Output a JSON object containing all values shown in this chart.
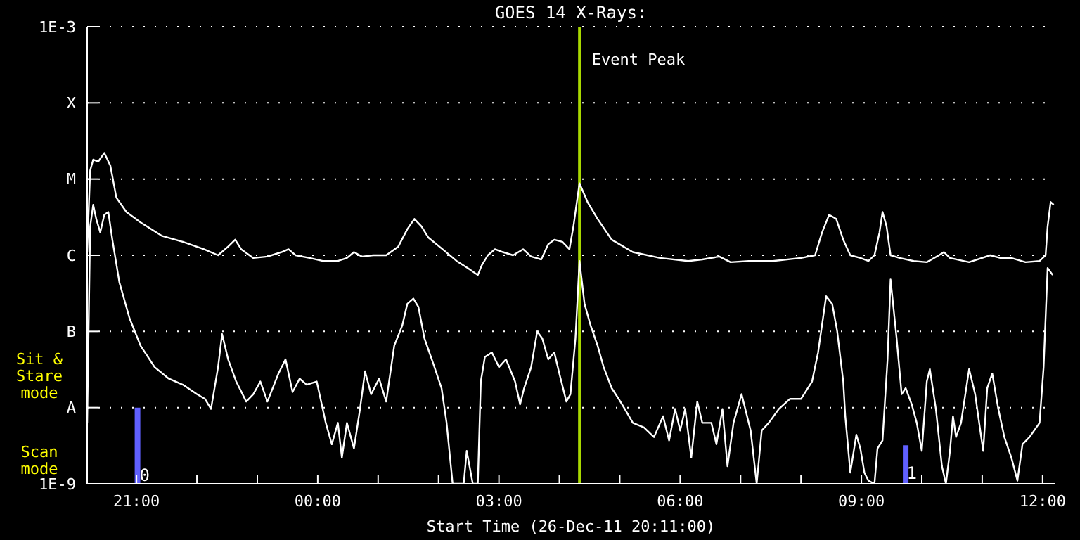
{
  "chart_data": {
    "type": "line",
    "title": "GOES 14 X-Rays:",
    "xlabel": "Start Time (26-Dec-11 20:11:00)",
    "xlim": [
      "--12-26T20:11",
      "--12-27T12:12"
    ],
    "xticks": [
      {
        "value": "--12-26T21:00",
        "label": "21:00"
      },
      {
        "value": "--12-26T22:00",
        "label": null
      },
      {
        "value": "--12-26T23:00",
        "label": null
      },
      {
        "value": "--12-27T00:00",
        "label": "00:00"
      },
      {
        "value": "--12-27T01:00",
        "label": null
      },
      {
        "value": "--12-27T02:00",
        "label": null
      },
      {
        "value": "--12-27T03:00",
        "label": "03:00"
      },
      {
        "value": "--12-27T04:00",
        "label": null
      },
      {
        "value": "--12-27T05:00",
        "label": null
      },
      {
        "value": "--12-27T06:00",
        "label": "06:00"
      },
      {
        "value": "--12-27T07:00",
        "label": null
      },
      {
        "value": "--12-27T08:00",
        "label": null
      },
      {
        "value": "--12-27T09:00",
        "label": "09:00"
      },
      {
        "value": "--12-27T10:00",
        "label": null
      },
      {
        "value": "--12-27T11:00",
        "label": null
      },
      {
        "value": "--12-27T12:00",
        "label": "12:00"
      }
    ],
    "ylim": [
      1e-09,
      0.001
    ],
    "yticks": [
      {
        "value": 1e-09,
        "label": "1E-9"
      },
      {
        "value": 1e-08,
        "label": "A"
      },
      {
        "value": 1e-07,
        "label": "B"
      },
      {
        "value": 1e-06,
        "label": "C"
      },
      {
        "value": 1e-05,
        "label": "M"
      },
      {
        "value": 0.0001,
        "label": "X"
      },
      {
        "value": 0.001,
        "label": "1E-3"
      }
    ],
    "log": "y",
    "grid": "y",
    "marker": "none",
    "line_style": "solid",
    "ref_lines": [
      {
        "axis": "x",
        "value": "--12-27T04:20",
        "label": "Event Peak",
        "color": "#a8d800"
      }
    ],
    "annotations": [
      "Sit & Stare mode",
      "Scan mode",
      {
        "text": "0",
        "x": "--12-26T21:08",
        "y": 1.3e-09
      },
      {
        "text": "1",
        "x": "--12-27T09:50",
        "y": 1.4e-09
      }
    ],
    "series": [
      {
        "color": "#ffffff",
        "x": [
          "--12-26T20:11",
          "--12-26T20:14",
          "--12-26T20:17",
          "--12-26T20:22",
          "--12-26T20:28",
          "--12-26T20:34",
          "--12-26T20:40",
          "--12-26T20:50",
          "--12-26T21:04",
          "--12-26T21:25",
          "--12-26T21:46",
          "--12-26T22:07",
          "--12-26T22:21",
          "--12-26T22:31",
          "--12-26T22:38",
          "--12-26T22:44",
          "--12-26T22:56",
          "--12-26T23:10",
          "--12-26T23:24",
          "--12-26T23:31",
          "--12-26T23:38",
          "--12-26T23:52",
          "--12-27T00:05",
          "--12-27T00:20",
          "--12-27T00:29",
          "--12-27T00:36",
          "--12-27T00:44",
          "--12-27T00:55",
          "--12-27T01:08",
          "--12-27T01:20",
          "--12-27T01:29",
          "--12-27T01:36",
          "--12-27T01:43",
          "--12-27T01:50",
          "--12-27T02:04",
          "--12-27T02:18",
          "--12-27T02:29",
          "--12-27T02:39",
          "--12-27T02:43",
          "--12-27T02:49",
          "--12-27T02:56",
          "--12-27T03:04",
          "--12-27T03:14",
          "--12-27T03:24",
          "--12-27T03:32",
          "--12-27T03:42",
          "--12-27T03:49",
          "--12-27T03:55",
          "--12-27T04:03",
          "--12-27T04:10",
          "--12-27T04:14",
          "--12-27T04:20",
          "--12-27T04:28",
          "--12-27T04:38",
          "--12-27T04:52",
          "--12-27T05:13",
          "--12-27T05:40",
          "--12-27T06:08",
          "--12-27T06:22",
          "--12-27T06:39",
          "--12-27T06:50",
          "--12-27T07:08",
          "--12-27T07:32",
          "--12-27T08:00",
          "--12-27T08:14",
          "--12-27T08:21",
          "--12-27T08:28",
          "--12-27T08:35",
          "--12-27T08:42",
          "--12-27T08:49",
          "--12-27T08:59",
          "--12-27T09:07",
          "--12-27T09:13",
          "--12-27T09:18",
          "--12-27T09:21",
          "--12-27T09:25",
          "--12-27T09:29",
          "--12-27T09:38",
          "--12-27T09:52",
          "--12-27T10:05",
          "--12-27T10:17",
          "--12-27T10:22",
          "--12-27T10:28",
          "--12-27T10:47",
          "--12-27T11:08",
          "--12-27T11:18",
          "--12-27T11:29",
          "--12-27T11:43",
          "--12-27T11:57",
          "--12-27T12:03",
          "--12-27T12:05",
          "--12-27T12:08",
          "--12-27T12:11"
        ],
        "values": [
          1.1e-06,
          1.3e-05,
          1.8e-05,
          1.7e-05,
          2.2e-05,
          1.5e-05,
          5.7e-06,
          3.7e-06,
          2.7e-06,
          1.8e-06,
          1.5e-06,
          1.2e-06,
          1e-06,
          1.3e-06,
          1.6e-06,
          1.2e-06,
          9.2e-07,
          9.6e-07,
          1.1e-06,
          1.2e-06,
          1e-06,
          9.2e-07,
          8.4e-07,
          8.4e-07,
          9.2e-07,
          1.1e-06,
          9.6e-07,
          1e-06,
          1e-06,
          1.3e-06,
          2.2e-06,
          3e-06,
          2.4e-06,
          1.7e-06,
          1.2e-06,
          8.4e-07,
          6.8e-07,
          5.5e-07,
          7.4e-07,
          1e-06,
          1.2e-06,
          1.1e-06,
          1e-06,
          1.2e-06,
          9.6e-07,
          8.8e-07,
          1.4e-06,
          1.6e-06,
          1.5e-06,
          1.2e-06,
          2.4e-06,
          8.8e-06,
          5e-06,
          3e-06,
          1.6e-06,
          1.1e-06,
          9.2e-07,
          8.4e-07,
          8.8e-07,
          9.6e-07,
          8.1e-07,
          8.4e-07,
          8.4e-07,
          9.2e-07,
          1e-06,
          2e-06,
          3.4e-06,
          3e-06,
          1.6e-06,
          1e-06,
          9.2e-07,
          8.4e-07,
          1e-06,
          2e-06,
          3.7e-06,
          2.4e-06,
          1e-06,
          9.2e-07,
          8.4e-07,
          8.1e-07,
          1e-06,
          1.1e-06,
          9.2e-07,
          8.1e-07,
          1e-06,
          9.2e-07,
          9.2e-07,
          8.1e-07,
          8.4e-07,
          1e-06,
          2.4e-06,
          5e-06,
          4.6e-06
        ]
      },
      {
        "color": "#ffffff",
        "x": [
          "--12-26T20:11",
          "--12-26T20:14",
          "--12-26T20:17",
          "--12-26T20:20",
          "--12-26T20:24",
          "--12-26T20:28",
          "--12-26T20:32",
          "--12-26T20:36",
          "--12-26T20:43",
          "--12-26T20:53",
          "--12-26T21:04",
          "--12-26T21:18",
          "--12-26T21:32",
          "--12-26T21:46",
          "--12-26T22:00",
          "--12-26T22:08",
          "--12-26T22:14",
          "--12-26T22:21",
          "--12-26T22:25",
          "--12-26T22:31",
          "--12-26T22:39",
          "--12-26T22:49",
          "--12-26T22:56",
          "--12-26T23:03",
          "--12-26T23:10",
          "--12-26T23:21",
          "--12-26T23:28",
          "--12-26T23:35",
          "--12-26T23:42",
          "--12-26T23:49",
          "--12-26T23:59",
          "--12-27T00:08",
          "--12-27T00:14",
          "--12-27T00:20",
          "--12-27T00:24",
          "--12-27T00:29",
          "--12-27T00:36",
          "--12-27T00:42",
          "--12-27T00:47",
          "--12-27T00:53",
          "--12-27T01:01",
          "--12-27T01:08",
          "--12-27T01:16",
          "--12-27T01:24",
          "--12-27T01:29",
          "--12-27T01:35",
          "--12-27T01:40",
          "--12-27T01:46",
          "--12-27T01:55",
          "--12-27T02:03",
          "--12-27T02:08",
          "--12-27T02:14",
          "--12-27T02:25",
          "--12-27T02:28",
          "--12-27T02:34",
          "--12-27T02:39",
          "--12-27T02:42",
          "--12-27T02:46",
          "--12-27T02:53",
          "--12-27T03:00",
          "--12-27T03:07",
          "--12-27T03:16",
          "--12-27T03:21",
          "--12-27T03:25",
          "--12-27T03:32",
          "--12-27T03:38",
          "--12-27T03:43",
          "--12-27T03:49",
          "--12-27T03:55",
          "--12-27T04:00",
          "--12-27T04:07",
          "--12-27T04:11",
          "--12-27T04:16",
          "--12-27T04:20",
          "--12-27T04:25",
          "--12-27T04:31",
          "--12-27T04:38",
          "--12-27T04:44",
          "--12-27T04:52",
          "--12-27T04:59",
          "--12-27T05:05",
          "--12-27T05:13",
          "--12-27T05:24",
          "--12-27T05:34",
          "--12-27T05:43",
          "--12-27T05:49",
          "--12-27T05:55",
          "--12-27T06:00",
          "--12-27T06:05",
          "--12-27T06:11",
          "--12-27T06:17",
          "--12-27T06:22",
          "--12-27T06:31",
          "--12-27T06:36",
          "--12-27T06:42",
          "--12-27T06:47",
          "--12-27T06:53",
          "--12-27T07:01",
          "--12-27T07:10",
          "--12-27T07:16",
          "--12-27T07:21",
          "--12-27T07:28",
          "--12-27T07:38",
          "--12-27T07:49",
          "--12-27T08:00",
          "--12-27T08:11",
          "--12-27T08:17",
          "--12-27T08:25",
          "--12-27T08:31",
          "--12-27T08:36",
          "--12-27T08:42",
          "--12-27T08:44",
          "--12-27T08:49",
          "--12-27T08:55",
          "--12-27T08:59",
          "--12-27T09:03",
          "--12-27T09:07",
          "--12-27T09:13",
          "--12-27T09:16",
          "--12-27T09:21",
          "--12-27T09:26",
          "--12-27T09:29",
          "--12-27T09:35",
          "--12-27T09:40",
          "--12-27T09:44",
          "--12-27T09:50",
          "--12-27T09:55",
          "--12-27T10:00",
          "--12-27T10:05",
          "--12-27T10:08",
          "--12-27T10:14",
          "--12-27T10:20",
          "--12-27T10:24",
          "--12-27T10:28",
          "--12-27T10:31",
          "--12-27T10:34",
          "--12-27T10:39",
          "--12-27T10:47",
          "--12-27T10:53",
          "--12-27T10:57",
          "--12-27T11:01",
          "--12-27T11:05",
          "--12-27T11:10",
          "--12-27T11:16",
          "--12-27T11:22",
          "--12-27T11:29",
          "--12-27T11:35",
          "--12-27T11:40",
          "--12-27T11:47",
          "--12-27T11:57",
          "--12-27T12:01",
          "--12-27T12:05",
          "--12-27T12:10"
        ],
        "values": [
          6.3e-09,
          2.4e-06,
          4.6e-06,
          3e-06,
          2e-06,
          3.4e-06,
          3.7e-06,
          1.6e-06,
          4.4e-07,
          1.5e-07,
          6.5e-08,
          3.4e-08,
          2.4e-08,
          2e-08,
          1.5e-08,
          1.3e-08,
          9.6e-09,
          3.4e-08,
          9.2e-08,
          4.3e-08,
          2.2e-08,
          1.2e-08,
          1.5e-08,
          2.2e-08,
          1.2e-08,
          2.8e-08,
          4.3e-08,
          1.6e-08,
          2.4e-08,
          2e-08,
          2.2e-08,
          6.3e-09,
          3.3e-09,
          6.3e-09,
          2.2e-09,
          6.3e-09,
          2.9e-09,
          9.6e-09,
          3e-08,
          1.5e-08,
          2.4e-08,
          1.2e-08,
          6.5e-08,
          1.2e-07,
          2.3e-07,
          2.7e-07,
          2.1e-07,
          8.1e-08,
          3.7e-08,
          1.8e-08,
          6.3e-09,
          1e-09,
          1e-09,
          2.7e-09,
          1e-09,
          1e-09,
          2.2e-08,
          4.6e-08,
          5.3e-08,
          3.4e-08,
          4.3e-08,
          2.2e-08,
          1.1e-08,
          1.8e-08,
          3.4e-08,
          1e-07,
          8.1e-08,
          4.3e-08,
          5.3e-08,
          2.8e-08,
          1.2e-08,
          1.5e-08,
          8.1e-08,
          8.4e-07,
          2.3e-07,
          1.2e-07,
          6.5e-08,
          3.4e-08,
          1.8e-08,
          1.3e-08,
          9.6e-09,
          6.3e-09,
          5.5e-09,
          4.1e-09,
          7.7e-09,
          3.7e-09,
          9.6e-09,
          5e-09,
          9.6e-09,
          2.2e-09,
          1.2e-08,
          6.3e-09,
          6.3e-09,
          3.3e-09,
          9.6e-09,
          1.7e-09,
          6.3e-09,
          1.5e-08,
          5e-09,
          1e-09,
          5e-09,
          6.3e-09,
          9.6e-09,
          1.3e-08,
          1.3e-08,
          2.2e-08,
          5.3e-08,
          2.9e-07,
          2.3e-07,
          1e-07,
          2.2e-08,
          7.7e-09,
          1.4e-09,
          4.4e-09,
          2.9e-09,
          1.4e-09,
          1.1e-09,
          1e-09,
          2.9e-09,
          3.7e-09,
          4.3e-08,
          4.8e-07,
          8.1e-08,
          1.5e-08,
          1.8e-08,
          1.1e-08,
          6.3e-09,
          2.7e-09,
          2.2e-08,
          3.2e-08,
          9.6e-09,
          1.7e-09,
          1e-09,
          2.7e-09,
          7.7e-09,
          4.1e-09,
          6.3e-09,
          3.2e-08,
          1.5e-08,
          6.3e-09,
          2.7e-09,
          1.8e-08,
          2.8e-08,
          9.6e-09,
          4.1e-09,
          2.2e-09,
          1.1e-09,
          3.3e-09,
          4.1e-09,
          6.3e-09,
          3.4e-08,
          6.8e-07,
          5.5e-07
        ]
      },
      {
        "color": "#6060ff",
        "x": [
          "--12-26T21:01",
          "--12-26T21:01"
        ],
        "values": [
          1e-09,
          1e-08
        ]
      },
      {
        "color": "#6060ff",
        "x": [
          "--12-27T09:44",
          "--12-27T09:44"
        ],
        "values": [
          1e-09,
          3.2e-09
        ]
      }
    ]
  }
}
